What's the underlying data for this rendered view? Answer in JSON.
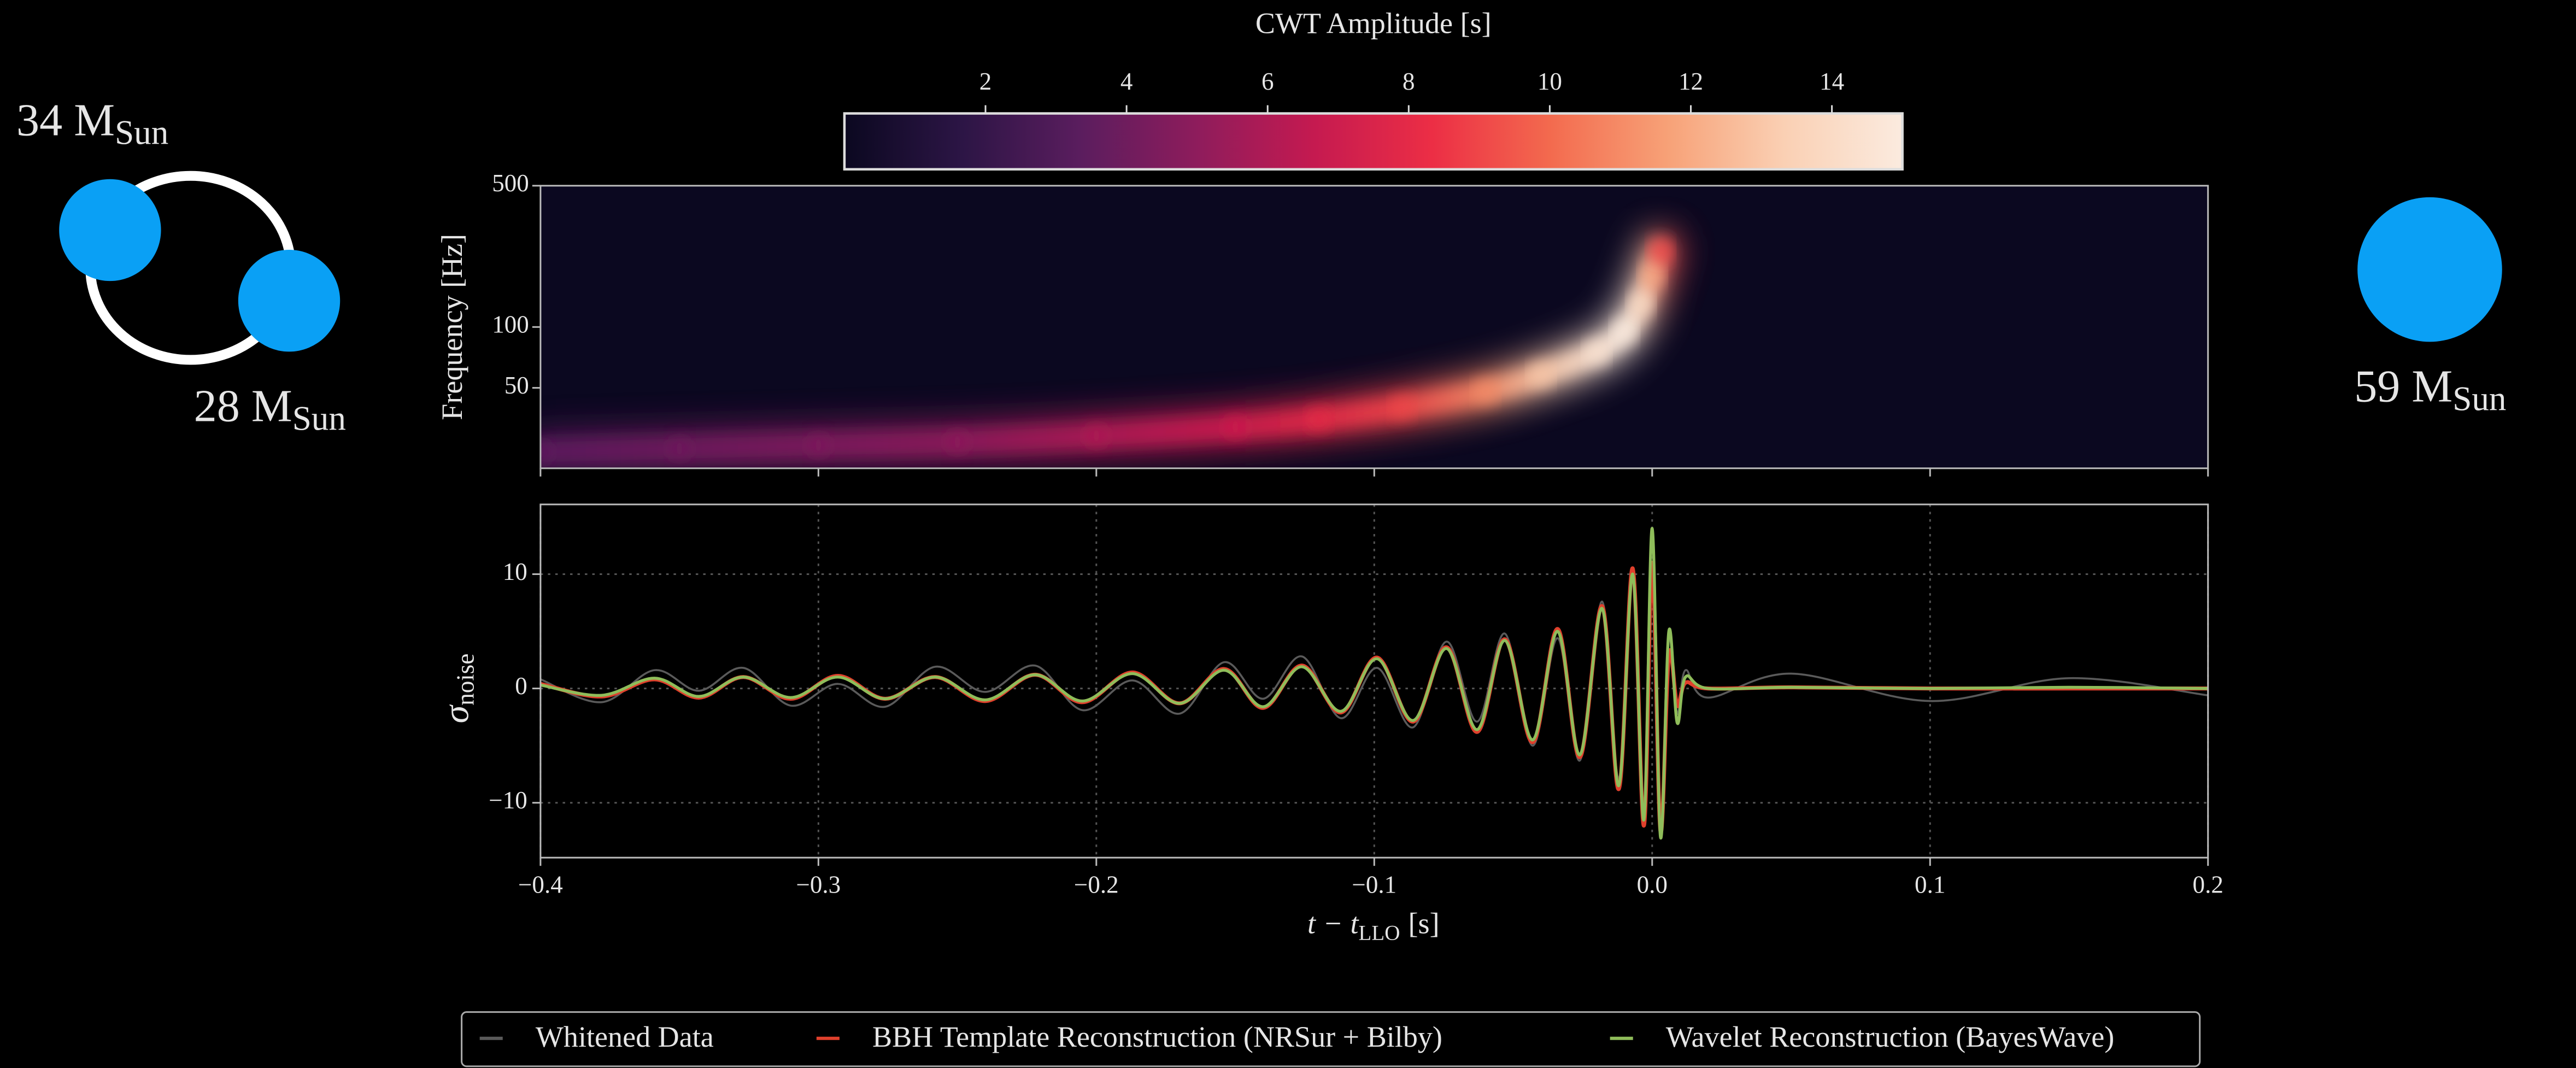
{
  "chart_data": [
    {
      "type": "heatmap",
      "colorbar_label": "CWT Amplitude [s]",
      "ylabel": "Frequency [Hz]",
      "xlim": [
        -0.4,
        0.2
      ],
      "xticks": [
        -0.4,
        -0.3,
        -0.2,
        -0.1,
        0,
        0.1,
        0.2
      ],
      "ylim": [
        20,
        500
      ],
      "yticks": [
        50,
        100,
        500
      ],
      "log_y": true,
      "clim": [
        0,
        15
      ],
      "cticks": [
        2,
        4,
        6,
        8,
        10,
        12,
        14
      ],
      "colormap": [
        "#0b0820",
        "#2c1545",
        "#5a1d5e",
        "#8e1c5c",
        "#c51a50",
        "#ec2e45",
        "#f36a4e",
        "#f7a177",
        "#fad0b4",
        "#fbebdf"
      ],
      "x": [
        -0.4,
        -0.35,
        -0.3,
        -0.25,
        -0.2,
        -0.15,
        -0.12,
        -0.09,
        -0.06,
        -0.04,
        -0.02,
        -0.01,
        -0.004,
        0,
        0.003
      ],
      "frequency": [
        24,
        25,
        26,
        27,
        29,
        32,
        35,
        40,
        48,
        58,
        75,
        95,
        130,
        180,
        240
      ],
      "amplitude": [
        3.5,
        4,
        4.5,
        5,
        6,
        7,
        8,
        9,
        11,
        13,
        14.5,
        15,
        14,
        12,
        9
      ]
    },
    {
      "type": "line",
      "xlabel": {
        "text": "t − t",
        "sub": "LLO",
        "unit": "[s]"
      },
      "ylabel": {
        "text": "σ",
        "sub": "noise"
      },
      "xlim": [
        -0.4,
        0.2
      ],
      "xticks": [
        {
          "value": -0.4,
          "label": "−0.4"
        },
        {
          "value": -0.3,
          "label": "−0.3"
        },
        {
          "value": -0.2,
          "label": "−0.2"
        },
        {
          "value": -0.1,
          "label": "−0.1"
        },
        {
          "value": 0,
          "label": "0.0"
        },
        0.1,
        0.2
      ],
      "ylim": [
        -14.8,
        16.1
      ],
      "yticks": [
        {
          "value": -10,
          "label": "−10"
        },
        0,
        10
      ],
      "grid": true,
      "legend": "bottom",
      "x": [
        -0.4,
        -0.378,
        -0.359,
        -0.343,
        -0.327,
        -0.31,
        -0.293,
        -0.276,
        -0.258,
        -0.24,
        -0.222,
        -0.205,
        -0.187,
        -0.17,
        -0.154,
        -0.14,
        -0.126,
        -0.112,
        -0.099,
        -0.086,
        -0.074,
        -0.063,
        -0.053,
        -0.043,
        -0.034,
        -0.026,
        -0.018,
        -0.012,
        -0.007,
        -0.003,
        0,
        0.003,
        0.006,
        0.009,
        0.012,
        0.02,
        0.05,
        0.1,
        0.15,
        0.2
      ],
      "series": [
        {
          "name": "Whitened Data",
          "color": "#5a5a5a",
          "values": [
            0.8,
            -1.2,
            1.6,
            -0.2,
            1.8,
            -1.5,
            0.4,
            -1.6,
            1.9,
            -0.3,
            2.0,
            -1.9,
            0.7,
            -2.2,
            2.3,
            -0.9,
            2.8,
            -2.6,
            1.8,
            -3.4,
            4.1,
            -2.9,
            4.8,
            -5.0,
            4.4,
            -6.3,
            7.6,
            -7.9,
            10.4,
            -11.0,
            13.2,
            -12.1,
            4.2,
            -2.2,
            1.6,
            -0.8,
            1.3,
            -1.1,
            0.9,
            -0.6
          ]
        },
        {
          "name": "BBH Template Reconstruction (NRSur + Bilby)",
          "color": "#e0402c",
          "values": [
            0.4,
            -0.7,
            0.8,
            -0.8,
            1.0,
            -0.9,
            1.1,
            -0.9,
            1.0,
            -1.1,
            1.2,
            -1.2,
            1.4,
            -1.3,
            1.7,
            -1.7,
            2.0,
            -2.1,
            2.7,
            -2.9,
            3.6,
            -3.8,
            4.3,
            -4.7,
            5.2,
            -6.0,
            7.2,
            -8.8,
            10.5,
            -12.0,
            11.0,
            -12.5,
            3.0,
            -1.5,
            0.5,
            0.0,
            0.1,
            0.0,
            0.0,
            0.0
          ]
        },
        {
          "name": "Wavelet Reconstruction (BayesWave)",
          "color": "#8fbd5a",
          "values": [
            0.3,
            -0.6,
            0.9,
            -0.7,
            1.0,
            -0.8,
            1.0,
            -0.9,
            1.0,
            -1.0,
            1.2,
            -1.1,
            1.3,
            -1.3,
            1.6,
            -1.6,
            1.9,
            -2.0,
            2.6,
            -2.8,
            3.5,
            -3.6,
            4.2,
            -4.5,
            5.0,
            -5.8,
            7.0,
            -8.5,
            10.0,
            -11.5,
            14.0,
            -13.0,
            5.0,
            -3.0,
            1.0,
            0.0,
            0.1,
            0.0,
            0.1,
            0.0
          ]
        }
      ]
    }
  ],
  "annotations": {
    "primary": {
      "text": "34 M",
      "sub": "Sun"
    },
    "secondary": {
      "text": "28 M",
      "sub": "Sun"
    },
    "remnant": {
      "text": "59 M",
      "sub": "Sun"
    }
  }
}
